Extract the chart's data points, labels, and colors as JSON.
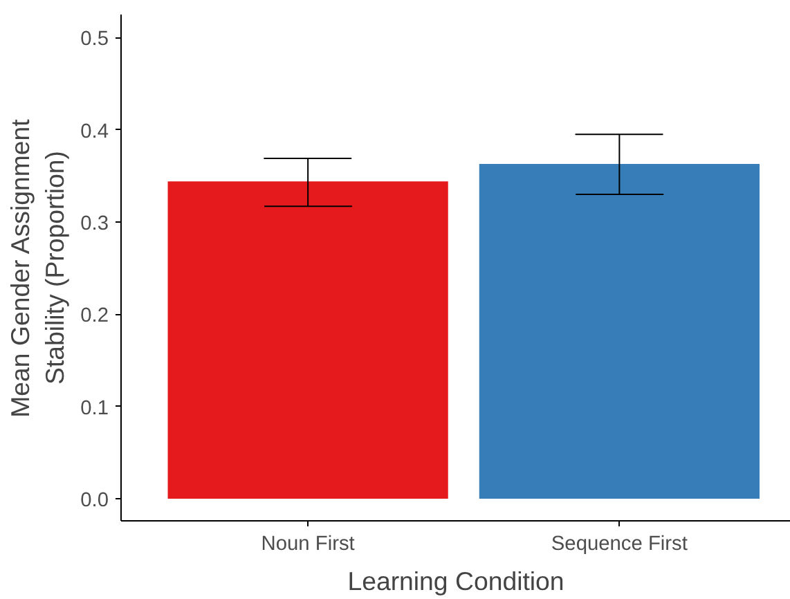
{
  "chart_data": {
    "type": "bar",
    "xlabel": "Learning Condition",
    "ylabel": "Mean Gender Assignment\nStability (Proportion)",
    "categories": [
      "Noun First",
      "Sequence First"
    ],
    "values": [
      0.344,
      0.363
    ],
    "colors": [
      "#e41a1c",
      "#377eb8"
    ],
    "errors": [
      [
        0.317,
        0.369
      ],
      [
        0.33,
        0.395
      ]
    ],
    "ylim": [
      -0.024,
      0.525
    ],
    "yticks": [
      {
        "value": 0,
        "label": "0.0"
      },
      0.1,
      0.2,
      0.3,
      0.4,
      0.5
    ],
    "grid": false
  }
}
